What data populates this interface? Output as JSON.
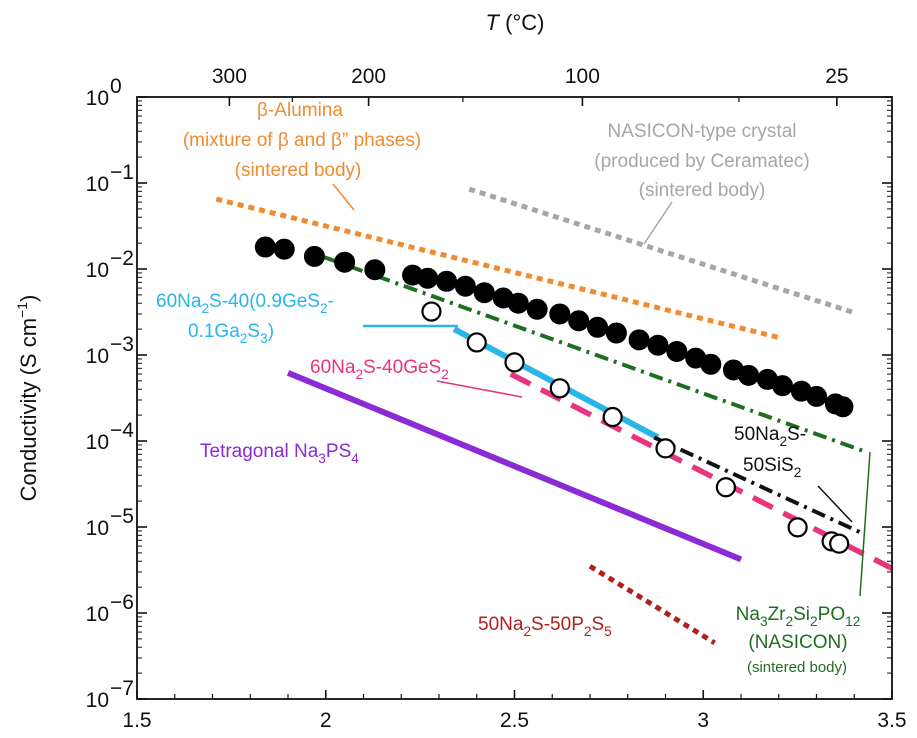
{
  "chart_data": {
    "type": "line",
    "x_axis": {
      "ticks": [
        1.5,
        2,
        2.5,
        3,
        3.5
      ],
      "tick_labels": [
        "1.5",
        "2",
        "2.5",
        "3",
        "3.5"
      ],
      "xlim": [
        1.5,
        3.5
      ]
    },
    "top_axis": {
      "title_italic": "T",
      "title_rest": " (°C)",
      "ticks_celsius": [
        300,
        200,
        100,
        25
      ],
      "tick_labels": [
        "300",
        "200",
        "100",
        "25"
      ]
    },
    "y_axis": {
      "title": "Conductivity (S cm",
      "title_sup": "−1",
      "title_close": ")",
      "scale": "log",
      "ylim": [
        1e-07,
        1
      ],
      "ticks": [
        1,
        0.1,
        0.01,
        0.001,
        0.0001,
        1e-05,
        1e-06,
        1e-07
      ],
      "tick_base": "10",
      "tick_exponents": [
        "0",
        "−1",
        "−2",
        "−3",
        "−4",
        "−5",
        "−6",
        "−7"
      ]
    },
    "grid": false,
    "series": [
      {
        "id": "beta_alumina",
        "style": "dotted",
        "color": "#f28a30",
        "label_lines": [
          "β-Alumina",
          "(mixture of β and β” phases)",
          "(sintered body)"
        ],
        "x": [
          1.71,
          3.2
        ],
        "y": [
          0.065,
          0.0016
        ]
      },
      {
        "id": "nasicon_ceramatec",
        "style": "dotted",
        "color": "#a6a6a6",
        "label_lines": [
          "NASICON-type crystal",
          "(produced by Ceramatec)",
          "(sintered body)"
        ],
        "x": [
          2.38,
          3.4
        ],
        "y": [
          0.085,
          0.0031
        ]
      },
      {
        "id": "nasicon_na3zr2si2po12",
        "style": "dashdot",
        "color": "#1f6e1f",
        "label_lines": [
          "Na3Zr2Si2PO12",
          "(NASICON)",
          "(sintered body)"
        ],
        "label_parts": [
          [
            "Na",
            "3",
            "Zr",
            "2",
            "Si",
            "2",
            "PO",
            "12"
          ]
        ],
        "x": [
          1.99,
          3.43
        ],
        "y": [
          0.014,
          7.5e-05
        ]
      },
      {
        "id": "na2s_ges2_ga2s3",
        "style": "solid-thick",
        "color": "#29b5e8",
        "label_lines": [
          "60Na2S-40(0.9GeS2-",
          "0.1Ga2S3)"
        ],
        "x": [
          2.34,
          2.88
        ],
        "y": [
          0.002,
          0.00011
        ]
      },
      {
        "id": "na2s_ges2",
        "style": "dashed",
        "color": "#e8337d",
        "label_lines": [
          "60Na2S-40GeS2"
        ],
        "x": [
          2.49,
          3.5
        ],
        "y": [
          0.0006,
          3.3e-06
        ]
      },
      {
        "id": "na2s_sis2",
        "style": "dashdot",
        "color": "#111111",
        "label_lines": [
          "50Na2S-",
          "50SiS2"
        ],
        "x": [
          2.87,
          3.42
        ],
        "y": [
          0.00011,
          8.5e-06
        ]
      },
      {
        "id": "tetragonal_na3ps4",
        "style": "solid-thick",
        "color": "#8a2bd6",
        "label_lines": [
          "Tetragonal Na3PS4"
        ],
        "x": [
          1.9,
          3.1
        ],
        "y": [
          0.00062,
          4.2e-06
        ]
      },
      {
        "id": "na2s_p2s5",
        "style": "dotted",
        "color": "#b0201c",
        "label_lines": [
          "50Na2S-50P2S5"
        ],
        "x": [
          2.7,
          3.03
        ],
        "y": [
          3.5e-06,
          4.5e-07
        ]
      }
    ],
    "markers": [
      {
        "id": "filled_circles",
        "style": "filled",
        "color": "#000000",
        "x": [
          1.84,
          1.89,
          1.97,
          2.05,
          2.13,
          2.23,
          2.27,
          2.32,
          2.37,
          2.42,
          2.47,
          2.51,
          2.56,
          2.62,
          2.67,
          2.72,
          2.77,
          2.83,
          2.88,
          2.93,
          2.98,
          3.02,
          3.08,
          3.12,
          3.17,
          3.21,
          3.26,
          3.3,
          3.35,
          3.37
        ],
        "y": [
          0.018,
          0.017,
          0.014,
          0.012,
          0.0098,
          0.0085,
          0.0078,
          0.0072,
          0.0063,
          0.0053,
          0.0046,
          0.004,
          0.0034,
          0.003,
          0.0025,
          0.0021,
          0.0018,
          0.0015,
          0.0013,
          0.0011,
          0.00092,
          0.00078,
          0.00067,
          0.00058,
          0.00052,
          0.00044,
          0.00038,
          0.00033,
          0.00027,
          0.00025
        ]
      },
      {
        "id": "open_circles",
        "style": "open",
        "color": "#000000",
        "x": [
          2.28,
          2.4,
          2.5,
          2.62,
          2.76,
          2.9,
          3.06,
          3.25,
          3.34,
          3.36
        ],
        "y": [
          0.0032,
          0.0014,
          0.00082,
          0.00041,
          0.00019,
          8.2e-05,
          2.9e-05,
          9.9e-06,
          6.8e-06,
          6.4e-06
        ]
      }
    ]
  }
}
